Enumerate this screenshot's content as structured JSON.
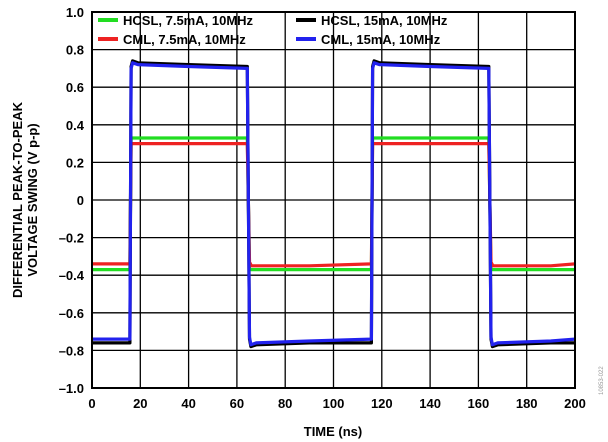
{
  "chart_data": {
    "type": "line",
    "xlabel": "TIME (ns)",
    "ylabel_lines": [
      "DIFFERENTIAL PEAK-TO-PEAK",
      "VOLTAGE SWING (V p-p)"
    ],
    "xlim": [
      0,
      200
    ],
    "ylim": [
      -1.0,
      1.0
    ],
    "xticks": [
      "0",
      "20",
      "40",
      "60",
      "80",
      "100",
      "120",
      "140",
      "160",
      "180",
      "200"
    ],
    "yticks": [
      "1.0",
      "0.8",
      "0.6",
      "0.4",
      "0.2",
      "0",
      "–0.2",
      "–0.4",
      "–0.6",
      "–0.8",
      "–1.0"
    ],
    "grid": true,
    "legend_position": "top",
    "series": [
      {
        "name": "HCSL, 7.5mA, 10MHz",
        "color": "#22dd22",
        "x": [
          0,
          15.7,
          16.2,
          17,
          19,
          40,
          64.3,
          65.2,
          66,
          68,
          90,
          115.7,
          116.2,
          117,
          119,
          140,
          164.3,
          165.2,
          166,
          168,
          190,
          200
        ],
        "y": [
          -0.37,
          -0.37,
          0.33,
          0.33,
          0.33,
          0.33,
          0.33,
          -0.37,
          -0.37,
          -0.37,
          -0.37,
          -0.37,
          0.33,
          0.33,
          0.33,
          0.33,
          0.33,
          -0.37,
          -0.37,
          -0.37,
          -0.37,
          -0.37
        ]
      },
      {
        "name": "CML, 7.5mA, 10MHz",
        "color": "#ee2222",
        "x": [
          0,
          15.7,
          16.2,
          17,
          19,
          40,
          64.3,
          65.2,
          66,
          68,
          90,
          115.7,
          116.2,
          117,
          119,
          140,
          164.3,
          165.2,
          166,
          168,
          190,
          200
        ],
        "y": [
          -0.34,
          -0.34,
          0.3,
          0.3,
          0.3,
          0.3,
          0.3,
          -0.33,
          -0.35,
          -0.35,
          -0.35,
          -0.34,
          0.3,
          0.3,
          0.3,
          0.3,
          0.3,
          -0.33,
          -0.35,
          -0.35,
          -0.35,
          -0.34
        ]
      },
      {
        "name": "HCSL, 15mA, 10MHz",
        "color": "#000000",
        "x": [
          0,
          15.7,
          16.2,
          16.8,
          19,
          40,
          64.3,
          65.2,
          65.8,
          68,
          90,
          115.7,
          116.2,
          116.8,
          119,
          140,
          164.3,
          165.2,
          165.8,
          168,
          190,
          200
        ],
        "y": [
          -0.76,
          -0.76,
          0.71,
          0.74,
          0.73,
          0.72,
          0.71,
          -0.74,
          -0.78,
          -0.77,
          -0.76,
          -0.76,
          0.71,
          0.74,
          0.73,
          0.72,
          0.71,
          -0.74,
          -0.78,
          -0.77,
          -0.76,
          -0.76
        ]
      },
      {
        "name": "CML, 15mA, 10MHz",
        "color": "#2222ee",
        "x": [
          0,
          15.7,
          16.2,
          16.8,
          19,
          40,
          64.3,
          65.2,
          65.8,
          68,
          90,
          115.7,
          116.2,
          116.8,
          119,
          140,
          164.3,
          165.2,
          165.8,
          168,
          190,
          200
        ],
        "y": [
          -0.74,
          -0.74,
          0.7,
          0.73,
          0.72,
          0.71,
          0.7,
          -0.73,
          -0.77,
          -0.76,
          -0.75,
          -0.74,
          0.7,
          0.73,
          0.72,
          0.71,
          0.7,
          -0.73,
          -0.77,
          -0.76,
          -0.75,
          -0.74
        ]
      }
    ]
  },
  "figure_id": "10853-022"
}
